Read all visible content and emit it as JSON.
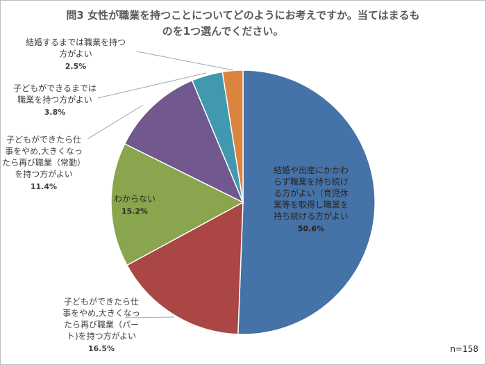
{
  "chart_data": {
    "type": "pie",
    "title_lines": [
      "問3 女性が職業を持つことについてどのようにお考えですか。当てはまるも",
      "のを1つ選んでください。"
    ],
    "note": "n=158",
    "slices": [
      {
        "label_lines": [
          "結婚や出産にかかわ",
          "らず職業を持ち続け",
          "る方がよい（育児休",
          "業等を取得し職業を",
          "持ち続ける方がよい"
        ],
        "value": 50.6,
        "display": "50.6%",
        "color": "#4572a7"
      },
      {
        "label_lines": [
          "子どもができたら仕",
          "事をやめ,大きくなっ",
          "たら再び職業（パー",
          "ト)を持つ方がよい"
        ],
        "value": 16.5,
        "display": "16.5%",
        "color": "#aa4643"
      },
      {
        "label_lines": [
          "わからない"
        ],
        "value": 15.2,
        "display": "15.2%",
        "color": "#89a54e"
      },
      {
        "label_lines": [
          "子どもができたら仕",
          "事をやめ,大きくなっ",
          "たら再び職業（常勤）",
          "を持つ方がよい"
        ],
        "value": 11.4,
        "display": "11.4%",
        "color": "#71588f"
      },
      {
        "label_lines": [
          "子どもができるまでは",
          "職業を持つ方がよい"
        ],
        "value": 3.8,
        "display": "3.8%",
        "color": "#4198af"
      },
      {
        "label_lines": [
          "結婚するまでは職業を持つ",
          "方がよい"
        ],
        "value": 2.5,
        "display": "2.5%",
        "color": "#db843d"
      }
    ]
  }
}
